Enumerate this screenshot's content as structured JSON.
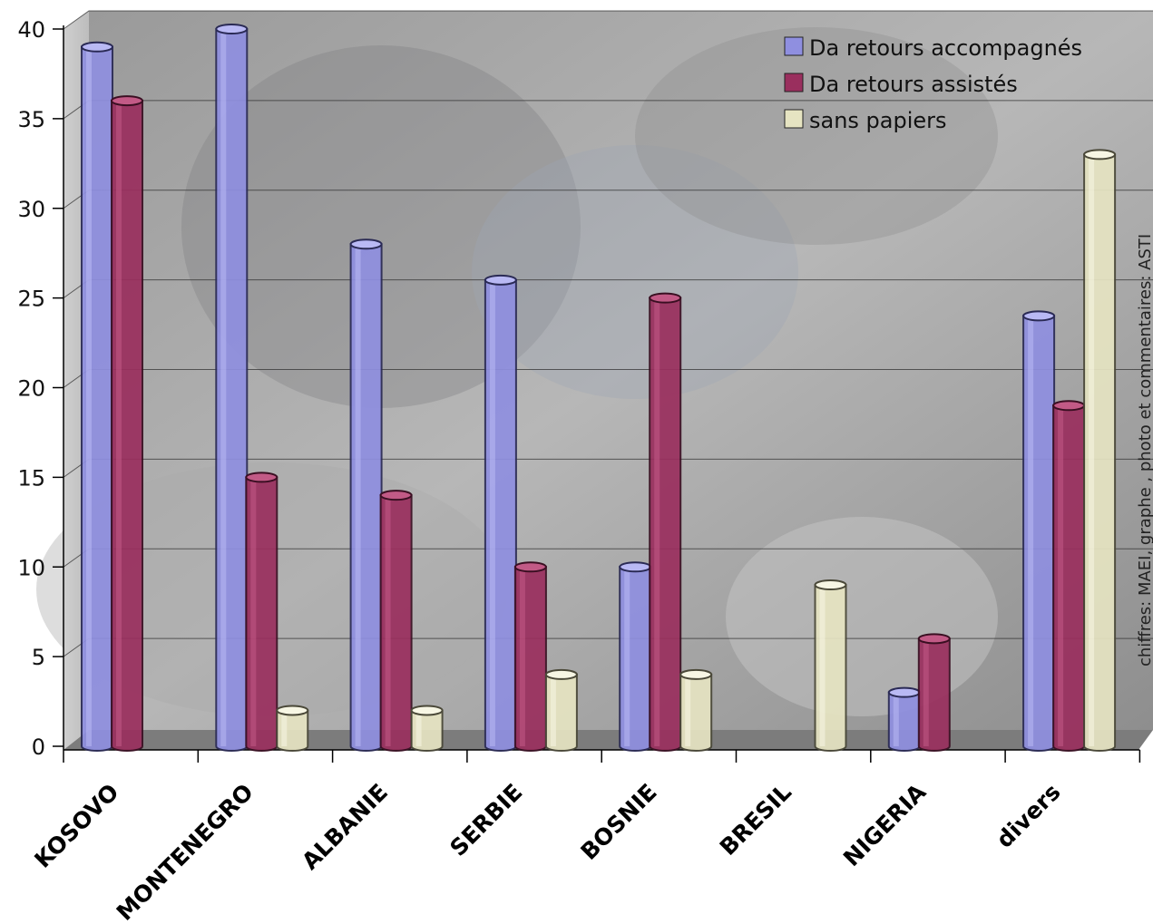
{
  "chart_data": {
    "type": "bar",
    "title": "",
    "xlabel": "",
    "ylabel": "",
    "ylim": [
      0,
      40
    ],
    "yticks": [
      0,
      5,
      10,
      15,
      20,
      25,
      30,
      35,
      40
    ],
    "grid": true,
    "legend_position": "top-right",
    "style": "3d-cylinder",
    "categories": [
      "KOSOVO",
      "MONTENEGRO",
      "ALBANIE",
      "SERBIE",
      "BOSNIE",
      "BRESIL",
      "NIGERIA",
      "divers"
    ],
    "series": [
      {
        "name": "Da retours accompagnés",
        "color": "#8f8fe0",
        "values": [
          39,
          40,
          28,
          26,
          10,
          0,
          3,
          24
        ]
      },
      {
        "name": "Da retours assistés",
        "color": "#9a2f5e",
        "values": [
          36,
          15,
          14,
          10,
          25,
          0,
          6,
          19
        ]
      },
      {
        "name": "sans papiers",
        "color": "#e6e4c2",
        "values": [
          0,
          2,
          2,
          4,
          4,
          9,
          0,
          33
        ]
      }
    ],
    "annotations": [
      "chiffres: MAEI, graphe , photo et commentaires: ASTI"
    ]
  }
}
